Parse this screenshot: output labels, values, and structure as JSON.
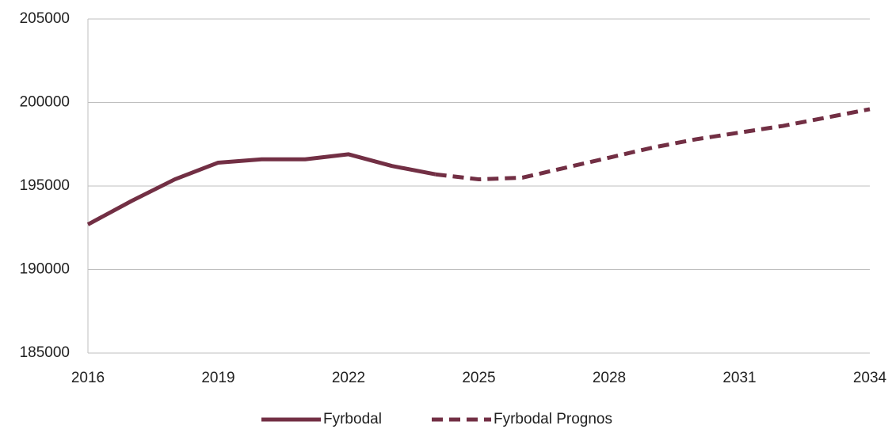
{
  "chart_data": {
    "type": "line",
    "x": [
      2016,
      2017,
      2018,
      2019,
      2020,
      2021,
      2022,
      2023,
      2024,
      2025,
      2026,
      2027,
      2028,
      2029,
      2030,
      2031,
      2032,
      2033,
      2034
    ],
    "series": [
      {
        "name": "Fyrbodal",
        "color": "#722f44",
        "dash": false,
        "values": [
          192700,
          194100,
          195400,
          196400,
          196600,
          196600,
          196900,
          196200,
          195700,
          null,
          null,
          null,
          null,
          null,
          null,
          null,
          null,
          null,
          null
        ]
      },
      {
        "name": "Fyrbodal Prognos",
        "color": "#722f44",
        "dash": true,
        "values": [
          null,
          null,
          null,
          null,
          null,
          null,
          null,
          null,
          195700,
          195400,
          195500,
          196100,
          196700,
          197300,
          197800,
          198200,
          198600,
          199100,
          199600
        ]
      }
    ],
    "xlim": [
      2016,
      2034
    ],
    "xticks": [
      2016,
      2019,
      2022,
      2025,
      2028,
      2031,
      2034
    ],
    "ylim": [
      185000,
      205000
    ],
    "yticks": [
      185000,
      190000,
      195000,
      200000,
      205000
    ],
    "grid": true,
    "legend": "bottom"
  }
}
